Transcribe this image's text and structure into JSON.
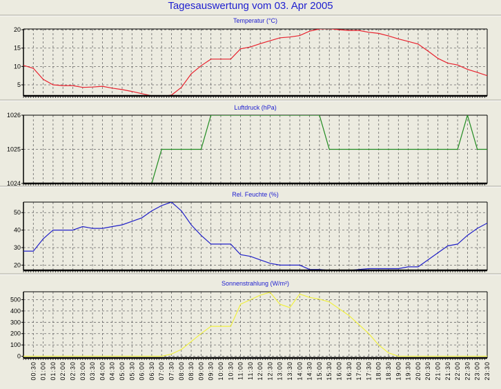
{
  "title": "Tagesauswertung vom 03. Apr 2005",
  "chart_data": [
    {
      "type": "line",
      "title": "Temperatur (°C)",
      "color": "#e8202c",
      "ylim": [
        2,
        20.2
      ],
      "yticks": [
        5,
        10,
        15,
        20
      ],
      "grid": true,
      "values": [
        10.3,
        9.5,
        6.5,
        5,
        4.8,
        4.8,
        4.3,
        4.4,
        4.6,
        4.1,
        3.7,
        3.2,
        2.6,
        2,
        1.8,
        2.2,
        4.3,
        8,
        10.2,
        12,
        12,
        12,
        14.8,
        15.3,
        16.2,
        17,
        17.8,
        18,
        18.4,
        19.6,
        20.2,
        20.3,
        20,
        19.8,
        19.8,
        19.3,
        19,
        18.3,
        17.5,
        16.8,
        16.1,
        14.2,
        12.2,
        10.9,
        10.4,
        9.2,
        8.4,
        7.5
      ]
    },
    {
      "type": "line",
      "title": "Luftdruck (hPa)",
      "color": "#1e8a1e",
      "ylim": [
        1024,
        1026
      ],
      "yticks": [
        1024,
        1025,
        1026
      ],
      "grid": true,
      "values": [
        1024,
        1024,
        1024,
        1024,
        1024,
        1024,
        1024,
        1024,
        1024,
        1024,
        1024,
        1024,
        1024,
        1024,
        1025,
        1025,
        1025,
        1025,
        1025,
        1026,
        1026,
        1026,
        1026,
        1026,
        1026,
        1026,
        1026,
        1026,
        1026,
        1026,
        1026,
        1025,
        1025,
        1025,
        1025,
        1025,
        1025,
        1025,
        1025,
        1025,
        1025,
        1025,
        1025,
        1025,
        1025,
        1026,
        1025,
        1025
      ]
    },
    {
      "type": "line",
      "title": "Rel. Feuchte (%)",
      "color": "#2020c8",
      "ylim": [
        17,
        56
      ],
      "yticks": [
        20,
        30,
        40,
        50
      ],
      "grid": true,
      "values": [
        28,
        28,
        35,
        40,
        40,
        40,
        42,
        41,
        41,
        42,
        43,
        45,
        47,
        51,
        54,
        56,
        51,
        43,
        37,
        32,
        32,
        32,
        26,
        25,
        23,
        21,
        20,
        20,
        20,
        17.5,
        17.5,
        17,
        17,
        17,
        17.5,
        18,
        18,
        18,
        18,
        19,
        19,
        23,
        27,
        31,
        32,
        37,
        41,
        44
      ]
    },
    {
      "type": "line",
      "title": "Sonnenstrahlung (W/m²)",
      "color": "#f0f040",
      "ylim": [
        -15,
        570
      ],
      "yticks": [
        0,
        100,
        200,
        300,
        400,
        500
      ],
      "grid": true,
      "values": [
        0,
        0,
        0,
        0,
        0,
        0,
        0,
        0,
        0,
        0,
        0,
        0,
        0,
        0,
        0,
        20,
        60,
        130,
        200,
        265,
        265,
        265,
        460,
        500,
        540,
        565,
        460,
        430,
        550,
        520,
        505,
        480,
        420,
        360,
        280,
        200,
        100,
        30,
        0,
        0,
        0,
        0,
        0,
        0,
        0,
        0,
        0,
        0
      ]
    }
  ],
  "x_tick_labels": [
    "00:30",
    "01:00",
    "01:30",
    "02:00",
    "02:30",
    "03:00",
    "03:30",
    "04:00",
    "04:30",
    "05:00",
    "05:30",
    "06:00",
    "06:30",
    "07:00",
    "07:30",
    "08:00",
    "08:30",
    "09:00",
    "09:30",
    "10:00",
    "10:30",
    "11:00",
    "11:30",
    "12:00",
    "12:30",
    "13:00",
    "13:30",
    "14:00",
    "14:30",
    "15:00",
    "15:30",
    "16:00",
    "16:30",
    "17:00",
    "17:30",
    "18:00",
    "18:30",
    "19:00",
    "19:30",
    "20:00",
    "20:30",
    "21:00",
    "21:30",
    "22:00",
    "22:30",
    "23:00",
    "23:30"
  ]
}
